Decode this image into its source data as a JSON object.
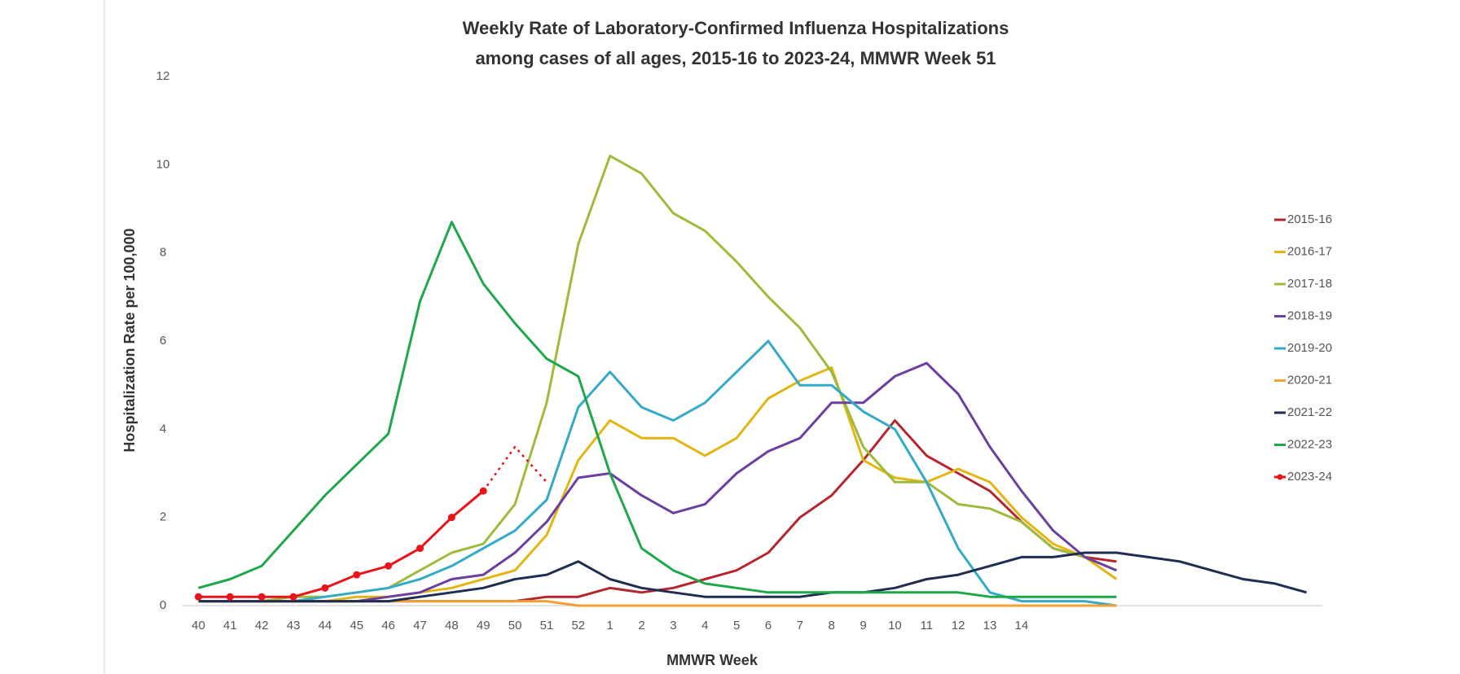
{
  "chart_data": {
    "type": "line",
    "title": "Weekly Rate of Laboratory-Confirmed Influenza Hospitalizations",
    "subtitle": "among cases of all ages, 2015-16 to 2023-24, MMWR Week 51",
    "x_label": "MMWR Week",
    "y_label": "Hospitalization Rate per 100,000",
    "categories": [
      40,
      41,
      42,
      43,
      44,
      45,
      46,
      47,
      48,
      49,
      50,
      51,
      52,
      1,
      2,
      3,
      4,
      5,
      6,
      7,
      8,
      9,
      10,
      11,
      12,
      13,
      14,
      null,
      null,
      null,
      null,
      null,
      null,
      null,
      null,
      null
    ],
    "ylim": [
      0,
      12
    ],
    "yticks": [
      0,
      2,
      4,
      6,
      8,
      10,
      12
    ],
    "grid": false,
    "legend": "right",
    "series": [
      {
        "name": "2015-16",
        "color": "#b3262e",
        "values": [
          0.1,
          0.1,
          0.1,
          0.1,
          0.1,
          0.1,
          0.1,
          0.1,
          0.1,
          0.1,
          0.1,
          0.2,
          0.2,
          0.4,
          0.3,
          0.4,
          0.6,
          0.8,
          1.2,
          2.0,
          2.5,
          3.3,
          4.2,
          3.4,
          3.0,
          2.6,
          1.9,
          1.3,
          1.1,
          1.0,
          null,
          null,
          null,
          null,
          null,
          null
        ]
      },
      {
        "name": "2016-17",
        "color": "#e3b512",
        "values": [
          0.1,
          0.1,
          0.1,
          0.1,
          0.1,
          0.2,
          0.2,
          0.3,
          0.4,
          0.6,
          0.8,
          1.6,
          3.3,
          4.2,
          3.8,
          3.8,
          3.4,
          3.8,
          4.7,
          5.1,
          5.4,
          3.3,
          2.9,
          2.8,
          3.1,
          2.8,
          2.0,
          1.4,
          1.1,
          0.6,
          null,
          null,
          null,
          null,
          null,
          null
        ]
      },
      {
        "name": "2017-18",
        "color": "#9dbb3c",
        "values": [
          0.1,
          0.1,
          0.1,
          0.2,
          0.2,
          0.3,
          0.4,
          0.8,
          1.2,
          1.4,
          2.3,
          4.6,
          8.2,
          10.2,
          9.8,
          8.9,
          8.5,
          7.8,
          7.0,
          6.3,
          5.3,
          3.6,
          2.8,
          2.8,
          2.3,
          2.2,
          1.9,
          1.3,
          1.1,
          0.8,
          null,
          null,
          null,
          null,
          null,
          null
        ]
      },
      {
        "name": "2018-19",
        "color": "#6b3fa0",
        "values": [
          0.1,
          0.1,
          0.1,
          0.1,
          0.1,
          0.1,
          0.2,
          0.3,
          0.6,
          0.7,
          1.2,
          1.9,
          2.9,
          3.0,
          2.5,
          2.1,
          2.3,
          3.0,
          3.5,
          3.8,
          4.6,
          4.6,
          5.2,
          5.5,
          4.8,
          3.6,
          2.6,
          1.7,
          1.1,
          0.8,
          null,
          null,
          null,
          null,
          null,
          null
        ]
      },
      {
        "name": "2019-20",
        "color": "#34a9c8",
        "values": [
          0.1,
          0.1,
          0.1,
          0.1,
          0.2,
          0.3,
          0.4,
          0.6,
          0.9,
          1.3,
          1.7,
          2.4,
          4.5,
          5.3,
          4.5,
          4.2,
          4.6,
          5.3,
          6.0,
          5.0,
          5.0,
          4.4,
          4.0,
          2.8,
          1.3,
          0.3,
          0.1,
          0.1,
          0.1,
          0.0,
          null,
          null,
          null,
          null,
          null,
          null
        ]
      },
      {
        "name": "2020-21",
        "color": "#f0a035",
        "values": [
          0.1,
          0.1,
          0.1,
          0.1,
          0.1,
          0.1,
          0.1,
          0.1,
          0.1,
          0.1,
          0.1,
          0.1,
          0.0,
          0.0,
          0.0,
          0.0,
          0.0,
          0.0,
          0.0,
          0.0,
          0.0,
          0.0,
          0.0,
          0.0,
          0.0,
          0.0,
          0.0,
          0.0,
          0.0,
          0.0,
          null,
          null,
          null,
          null,
          null,
          null
        ]
      },
      {
        "name": "2021-22",
        "color": "#1f2d50",
        "values": [
          0.1,
          0.1,
          0.1,
          0.1,
          0.1,
          0.1,
          0.1,
          0.2,
          0.3,
          0.4,
          0.6,
          0.7,
          1.0,
          0.6,
          0.4,
          0.3,
          0.2,
          0.2,
          0.2,
          0.2,
          0.3,
          0.3,
          0.4,
          0.6,
          0.7,
          0.9,
          1.1,
          1.1,
          1.2,
          1.2,
          1.1,
          1.0,
          0.8,
          0.6,
          0.5,
          0.3
        ]
      },
      {
        "name": "2022-23",
        "color": "#1fa84a",
        "values": [
          0.4,
          0.6,
          0.9,
          1.7,
          2.5,
          3.2,
          3.9,
          6.9,
          8.7,
          7.3,
          6.4,
          5.6,
          5.2,
          3.0,
          1.3,
          0.8,
          0.5,
          0.4,
          0.3,
          0.3,
          0.3,
          0.3,
          0.3,
          0.3,
          0.3,
          0.2,
          0.2,
          0.2,
          0.2,
          0.2,
          null,
          null,
          null,
          null,
          null,
          null
        ]
      },
      {
        "name": "2023-24",
        "color": "#e8141a",
        "markers": true,
        "values": [
          0.2,
          0.2,
          0.2,
          0.2,
          0.4,
          0.7,
          0.9,
          1.3,
          2.0,
          2.6,
          null,
          null,
          null,
          null,
          null,
          null,
          null,
          null,
          null,
          null,
          null,
          null,
          null,
          null,
          null,
          null,
          null,
          null,
          null,
          null,
          null,
          null,
          null,
          null,
          null,
          null
        ],
        "projected_values": [
          null,
          null,
          null,
          null,
          null,
          null,
          null,
          null,
          null,
          2.6,
          3.6,
          2.8,
          null,
          null,
          null,
          null,
          null,
          null,
          null,
          null,
          null,
          null,
          null,
          null,
          null,
          null,
          null,
          null,
          null,
          null,
          null,
          null,
          null,
          null,
          null,
          null
        ]
      }
    ]
  }
}
